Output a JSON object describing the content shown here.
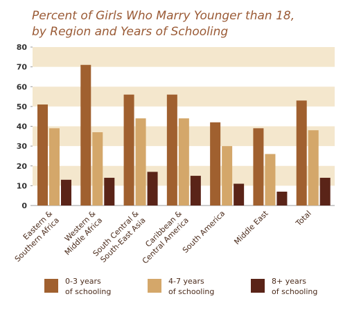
{
  "chart_data": {
    "type": "bar",
    "title": "Percent of Girls Who Marry Younger than 18,\nby Region and Years of Schooling",
    "categories": [
      "Eastern &\nSouthern Africa",
      "Western &\nMiddle Africa",
      "South Central &\nSouth-East Asia",
      "Caribbean &\nCentral America",
      "South America",
      "Middle East",
      "Total"
    ],
    "series": [
      {
        "name": "0-3 years\nof schooling",
        "color": "#a0602f",
        "values": [
          51,
          71,
          56,
          56,
          42,
          39,
          53
        ]
      },
      {
        "name": "4-7 years\nof schooling",
        "color": "#d4a76a",
        "values": [
          39,
          37,
          44,
          44,
          30,
          26,
          38
        ]
      },
      {
        "name": "8+ years\nof schooling",
        "color": "#5a2418",
        "values": [
          13,
          14,
          17,
          15,
          11,
          7,
          14
        ]
      }
    ],
    "ylim": [
      0,
      80
    ],
    "yticks": [
      0,
      10,
      20,
      30,
      40,
      50,
      60,
      70,
      80
    ],
    "grid": true,
    "band_color": "#f4e7cd"
  }
}
